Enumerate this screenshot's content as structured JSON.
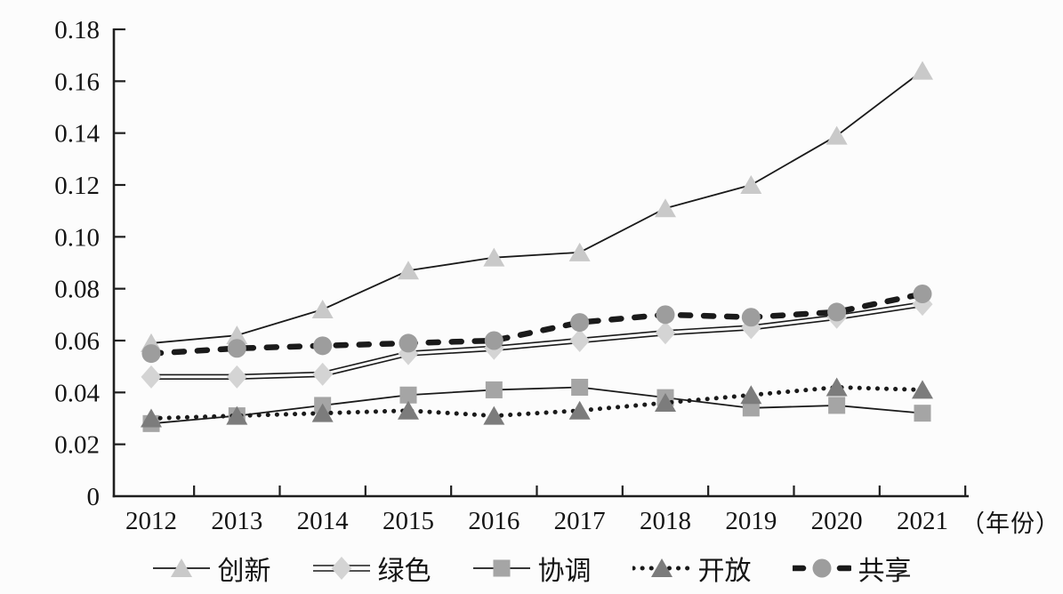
{
  "figure": {
    "background": "#fcfcfc",
    "axis_color": "#1f1f1f",
    "text_color": "#141414"
  },
  "chart_data": {
    "type": "line",
    "title": "",
    "xlabel": "（年份）",
    "ylabel": "",
    "x": [
      "2012",
      "2013",
      "2014",
      "2015",
      "2016",
      "2017",
      "2018",
      "2019",
      "2020",
      "2021"
    ],
    "ylim": [
      0,
      0.18
    ],
    "ytick_labels": [
      "0.18",
      "0.16",
      "0.14",
      "0.12",
      "0.10",
      "0.08",
      "0.06",
      "0.04",
      "0.02",
      "0"
    ],
    "grid": false,
    "legend_position": "bottom",
    "series": [
      {
        "key": "innovation",
        "name": "创新",
        "marker": "triangle",
        "marker_color": "#c9c9c9",
        "line_style": "solid",
        "line_width": 1.8,
        "line_color": "#1a1a1a",
        "values": [
          0.059,
          0.062,
          0.072,
          0.087,
          0.092,
          0.094,
          0.111,
          0.12,
          0.139,
          0.164
        ]
      },
      {
        "key": "green",
        "name": "绿色",
        "marker": "diamond",
        "marker_color": "#d4d4d4",
        "line_style": "double",
        "line_width": 1.6,
        "line_color": "#1a1a1a",
        "values": [
          0.046,
          0.046,
          0.047,
          0.055,
          0.057,
          0.06,
          0.063,
          0.065,
          0.069,
          0.074
        ]
      },
      {
        "key": "coordination",
        "name": "协调",
        "marker": "square",
        "marker_color": "#a5a5a5",
        "line_style": "solid",
        "line_width": 1.8,
        "line_color": "#1a1a1a",
        "values": [
          0.028,
          0.031,
          0.035,
          0.039,
          0.041,
          0.042,
          0.038,
          0.034,
          0.035,
          0.032
        ]
      },
      {
        "key": "openness",
        "name": "开放",
        "marker": "triangle",
        "marker_color": "#7c7c7c",
        "line_style": "dotted",
        "line_width": 5,
        "line_color": "#1a1a1a",
        "values": [
          0.03,
          0.031,
          0.032,
          0.033,
          0.031,
          0.033,
          0.036,
          0.039,
          0.042,
          0.041
        ]
      },
      {
        "key": "sharing",
        "name": "共享",
        "marker": "circle",
        "marker_color": "#9d9d9d",
        "line_style": "dashed",
        "line_width": 6.5,
        "line_color": "#1a1a1a",
        "values": [
          0.055,
          0.057,
          0.058,
          0.059,
          0.06,
          0.067,
          0.07,
          0.069,
          0.071,
          0.078
        ]
      }
    ]
  }
}
